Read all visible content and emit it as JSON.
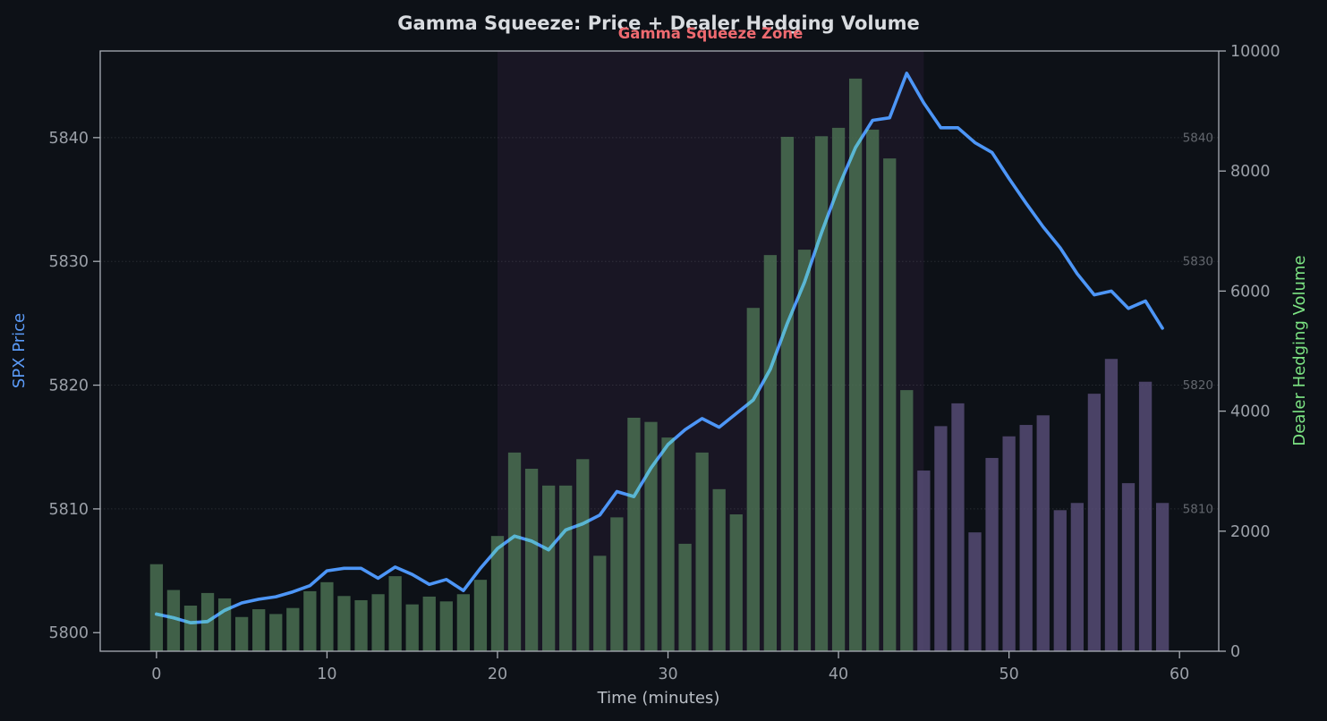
{
  "chart_data": {
    "type": "combo",
    "title": "Gamma Squeeze: Price + Dealer Hedging Volume",
    "xlabel": "Time (minutes)",
    "ylabel_left": "SPX Price",
    "ylabel_right": "Dealer Hedging Volume",
    "x": [
      0,
      1,
      2,
      3,
      4,
      5,
      6,
      7,
      8,
      9,
      10,
      11,
      12,
      13,
      14,
      15,
      16,
      17,
      18,
      19,
      20,
      21,
      22,
      23,
      24,
      25,
      26,
      27,
      28,
      29,
      30,
      31,
      32,
      33,
      34,
      35,
      36,
      37,
      38,
      39,
      40,
      41,
      42,
      43,
      44,
      45,
      46,
      47,
      48,
      49,
      50,
      51,
      52,
      53,
      54,
      55,
      56,
      57,
      58,
      59
    ],
    "series": [
      {
        "name": "SPX Price",
        "type": "line",
        "axis": "left",
        "color": "#4d96f7",
        "overlap_color": "#5ab7d2",
        "values": [
          5801.5,
          5801.2,
          5800.8,
          5800.9,
          5801.8,
          5802.4,
          5802.7,
          5802.9,
          5803.3,
          5803.8,
          5805.0,
          5805.2,
          5805.2,
          5804.4,
          5805.3,
          5804.7,
          5803.9,
          5804.3,
          5803.4,
          5805.2,
          5806.8,
          5807.8,
          5807.4,
          5806.7,
          5808.3,
          5808.8,
          5809.5,
          5811.4,
          5811.0,
          5813.3,
          5815.2,
          5816.4,
          5817.3,
          5816.6,
          5817.7,
          5818.8,
          5821.3,
          5825.0,
          5828.3,
          5832.3,
          5836.0,
          5839.2,
          5841.4,
          5841.6,
          5845.2,
          5842.8,
          5840.8,
          5840.8,
          5839.6,
          5838.8,
          5836.7,
          5834.7,
          5832.8,
          5831.1,
          5829.0,
          5827.3,
          5827.6,
          5826.2,
          5826.8,
          5824.6
        ]
      },
      {
        "name": "Dealer Hedging Volume",
        "type": "bar",
        "axis": "right",
        "color_early": "#4C7253",
        "color_late": "#584D78",
        "color_switch_minute": 45,
        "bar_width_minutes": 0.75,
        "values": [
          1450,
          1020,
          760,
          970,
          880,
          570,
          700,
          620,
          720,
          1000,
          1150,
          920,
          850,
          950,
          1250,
          780,
          910,
          830,
          950,
          1190,
          1920,
          3310,
          3040,
          2760,
          2760,
          3200,
          1590,
          2230,
          3890,
          3820,
          3560,
          1790,
          3310,
          2700,
          2280,
          5720,
          6600,
          8570,
          6690,
          8580,
          8720,
          9540,
          8690,
          8210,
          4350,
          3010,
          3750,
          4130,
          1980,
          3220,
          3580,
          3770,
          3930,
          2350,
          2470,
          4290,
          4870,
          2800,
          4490,
          2470
        ]
      }
    ],
    "zone": {
      "label": "Gamma Squeeze Zone",
      "start_minute": 20,
      "end_minute": 45,
      "fill": "rgba(130,65,150,0.11)",
      "label_color": "#ee6a70"
    },
    "axes": {
      "x": {
        "ticks": [
          0,
          10,
          20,
          30,
          40,
          50,
          60
        ],
        "range": [
          -3.3,
          62.3
        ]
      },
      "left_price": {
        "ticks": [
          5800,
          5810,
          5820,
          5830,
          5840
        ],
        "range": [
          5798.5,
          5847.0
        ],
        "label_color": "#5b9bf8"
      },
      "right_volume": {
        "ticks": [
          0,
          2000,
          4000,
          6000,
          8000,
          10000
        ],
        "range": [
          0,
          10000
        ],
        "label_color": "#7ce383"
      },
      "inner_right_price": {
        "ticks": [
          5810,
          5820,
          5830,
          5840
        ]
      }
    },
    "grid": {
      "on": true,
      "at_price_ticks": [
        5810,
        5820,
        5830,
        5840
      ],
      "style": "dotted"
    },
    "colors": {
      "background": "#0d1117",
      "spine": "#a9aeb5",
      "tick_label": "#9ba0a8",
      "inner_tick_label": "#63676e",
      "title": "#d9dce0",
      "xlabel": "#b9bec5"
    }
  }
}
